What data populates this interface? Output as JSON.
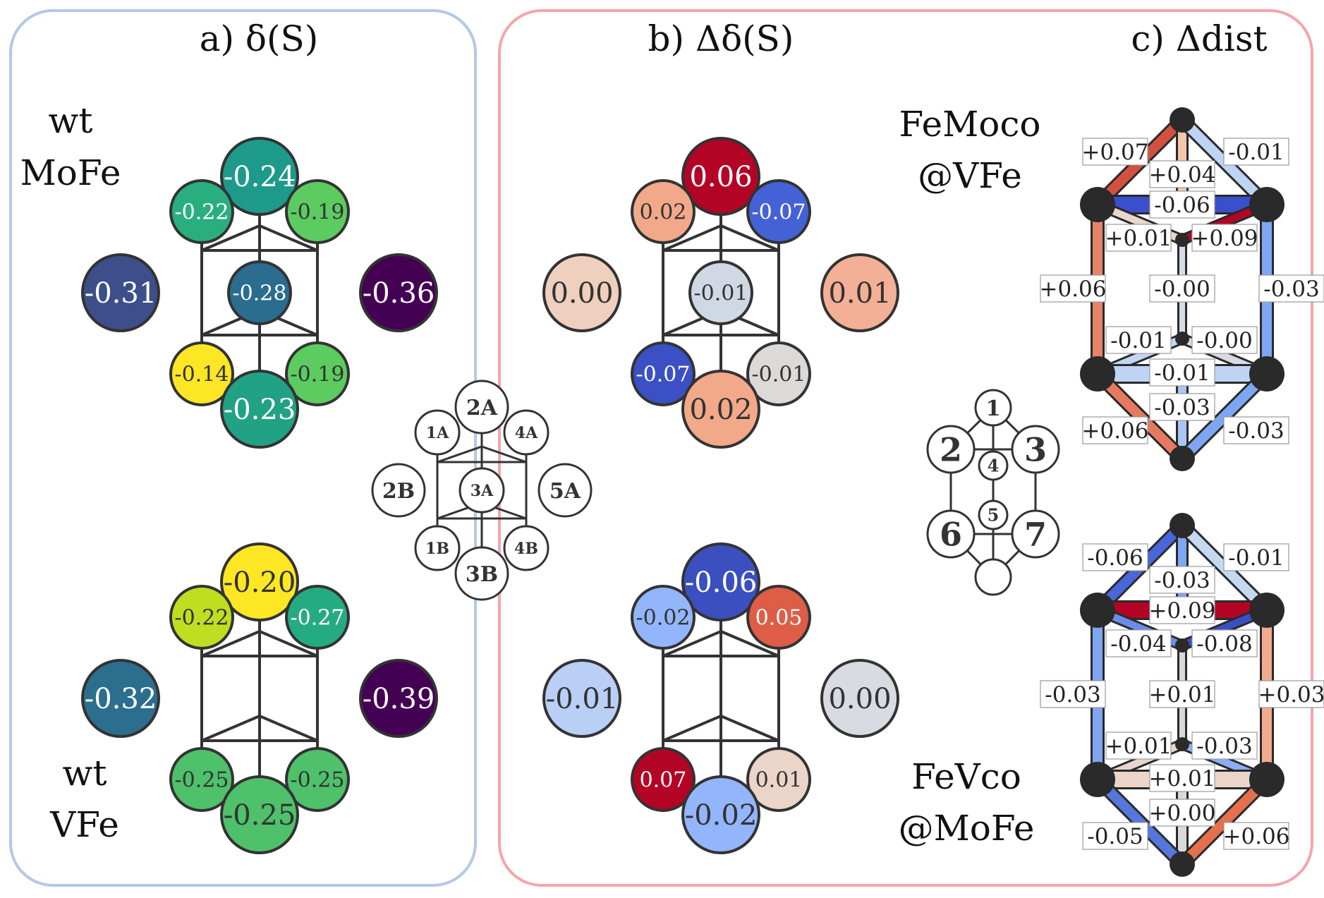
{
  "panels": {
    "a": {
      "title": "a) δ(S)",
      "frame_color": "#b4c8e6",
      "rows": [
        {
          "label_lines": [
            "wt",
            "MoFe"
          ],
          "nodes": {
            "2A": {
              "value": "-0.24",
              "fill": "#1e9a8a"
            },
            "1A": {
              "value": "-0.22",
              "fill": "#2aae80"
            },
            "4A": {
              "value": "-0.19",
              "fill": "#5ccb60"
            },
            "3A": {
              "value": "-0.28",
              "fill": "#2a6d8f"
            },
            "2B": {
              "value": "-0.31",
              "fill": "#3d4e8a"
            },
            "5A": {
              "value": "-0.36",
              "fill": "#440154"
            },
            "1B": {
              "value": "-0.14",
              "fill": "#fde725"
            },
            "4B": {
              "value": "-0.19",
              "fill": "#5ccb60"
            },
            "3B": {
              "value": "-0.23",
              "fill": "#21a284"
            }
          }
        },
        {
          "label_lines": [
            "wt",
            "VFe"
          ],
          "nodes": {
            "2A": {
              "value": "-0.20",
              "fill": "#fde725"
            },
            "1A": {
              "value": "-0.22",
              "fill": "#c0de20"
            },
            "4A": {
              "value": "-0.27",
              "fill": "#25ab82"
            },
            "2B": {
              "value": "-0.32",
              "fill": "#2c6e8e"
            },
            "5A": {
              "value": "-0.39",
              "fill": "#440154"
            },
            "1B": {
              "value": "-0.25",
              "fill": "#4ec16a"
            },
            "4B": {
              "value": "-0.25",
              "fill": "#4ec16a"
            },
            "3B": {
              "value": "-0.25",
              "fill": "#4ec16a"
            }
          }
        }
      ]
    },
    "b": {
      "title": "b) Δδ(S)",
      "frame_color": "#f4a6aa",
      "rows": [
        {
          "nodes": {
            "2A": {
              "value": "0.06",
              "fill": "#b40426"
            },
            "1A": {
              "value": "0.02",
              "fill": "#f2a98a"
            },
            "4A": {
              "value": "-0.07",
              "fill": "#4561d6"
            },
            "3A": {
              "value": "-0.01",
              "fill": "#d0d8e4"
            },
            "2B": {
              "value": "0.00",
              "fill": "#efcfbd"
            },
            "5A": {
              "value": "0.01",
              "fill": "#f4b096"
            },
            "1B": {
              "value": "-0.07",
              "fill": "#3b50c4"
            },
            "4B": {
              "value": "-0.01",
              "fill": "#dcdad8"
            },
            "3B": {
              "value": "0.02",
              "fill": "#f2a98a"
            }
          }
        },
        {
          "nodes": {
            "2A": {
              "value": "-0.06",
              "fill": "#3b4fc0"
            },
            "1A": {
              "value": "-0.02",
              "fill": "#93b5fb"
            },
            "4A": {
              "value": "0.05",
              "fill": "#dd5d47"
            },
            "2B": {
              "value": "-0.01",
              "fill": "#b9cff6"
            },
            "5A": {
              "value": "0.00",
              "fill": "#d8dbe2"
            },
            "1B": {
              "value": "0.07",
              "fill": "#b40426"
            },
            "4B": {
              "value": "0.01",
              "fill": "#ead5c8"
            },
            "3B": {
              "value": "-0.02",
              "fill": "#93b5fb"
            }
          }
        }
      ]
    },
    "c": {
      "title": "c) Δdist",
      "row_labels": [
        [
          "FeMoco",
          "@VFe"
        ],
        [
          "FeVco",
          "@MoFe"
        ]
      ],
      "rows": [
        {
          "edges": {
            "top_left": {
              "value": "+0.07",
              "color": "#d4503e"
            },
            "top_center": {
              "value": "+0.04",
              "color": "#f4c6aa"
            },
            "top_right": {
              "value": "-0.01",
              "color": "#bfd4f4"
            },
            "bar_upper": {
              "value": "-0.06",
              "color": "#3a4fcc"
            },
            "upper_left_inner": {
              "value": "+0.01",
              "color": "#e9d7ca"
            },
            "upper_right_inner": {
              "value": "+0.09",
              "color": "#b40426"
            },
            "left_side": {
              "value": "+0.06",
              "color": "#e5846a"
            },
            "center_line": {
              "value": "-0.00",
              "color": "#d4dce8"
            },
            "right_side": {
              "value": "-0.03",
              "color": "#7ea6f2"
            },
            "lower_left_inner": {
              "value": "-0.01",
              "color": "#c3d5f2"
            },
            "lower_right_inner": {
              "value": "-0.00",
              "color": "#d6dce6"
            },
            "bar_lower": {
              "value": "-0.01",
              "color": "#bfd3f5"
            },
            "lower_center": {
              "value": "-0.03",
              "color": "#a9c4f5"
            },
            "bottom_left": {
              "value": "+0.06",
              "color": "#e57a60"
            },
            "bottom_right": {
              "value": "-0.03",
              "color": "#7ea6f2"
            }
          }
        },
        {
          "edges": {
            "top_left": {
              "value": "-0.06",
              "color": "#4a66d8"
            },
            "top_center": {
              "value": "-0.03",
              "color": "#7ea6f2"
            },
            "top_right": {
              "value": "-0.01",
              "color": "#c5d8f2"
            },
            "bar_upper": {
              "value": "+0.09",
              "color": "#b40426"
            },
            "upper_left_inner": {
              "value": "-0.04",
              "color": "#6a8ee8"
            },
            "upper_right_inner": {
              "value": "-0.08",
              "color": "#3b4fc4"
            },
            "left_side": {
              "value": "-0.03",
              "color": "#7ea6f2"
            },
            "center_line": {
              "value": "+0.01",
              "color": "#d9d9d9"
            },
            "right_side": {
              "value": "+0.03",
              "color": "#f2ab8e"
            },
            "lower_left_inner": {
              "value": "+0.01",
              "color": "#e6d6cb"
            },
            "lower_right_inner": {
              "value": "-0.03",
              "color": "#8aaef4"
            },
            "bar_lower": {
              "value": "+0.01",
              "color": "#ead5c8"
            },
            "lower_center": {
              "value": "+0.00",
              "color": "#d9d9d9"
            },
            "bottom_left": {
              "value": "-0.05",
              "color": "#5577dc"
            },
            "bottom_right": {
              "value": "+0.06",
              "color": "#e5704f"
            }
          }
        }
      ]
    }
  },
  "legend_a": [
    "2A",
    "1A",
    "4A",
    "2B",
    "3A",
    "5A",
    "1B",
    "4B",
    "3B"
  ],
  "legend_c": [
    "1",
    "2",
    "3",
    "4",
    "5",
    "6",
    "7"
  ],
  "text_colors": {
    "light": "#ffffff",
    "dark": "#333333"
  }
}
